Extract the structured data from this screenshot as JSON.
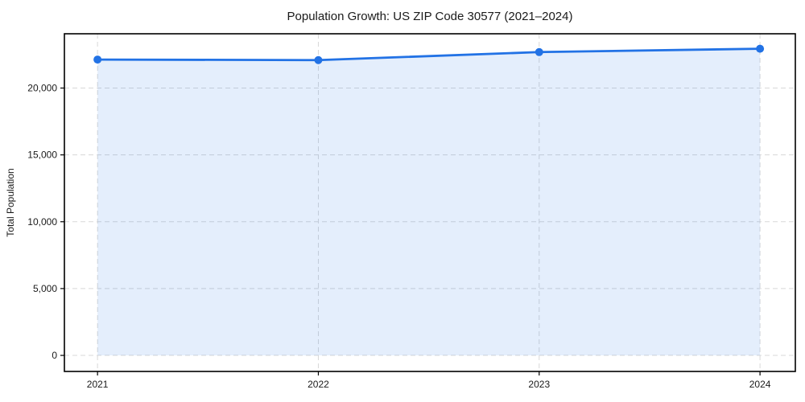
{
  "chart_data": {
    "type": "line",
    "title": "Population Growth: US ZIP Code 30577 (2021–2024)",
    "xlabel": "",
    "ylabel": "Total Population",
    "x": [
      2021,
      2022,
      2023,
      2024
    ],
    "values": [
      22130,
      22090,
      22690,
      22940
    ],
    "xtick_labels": [
      "2021",
      "2022",
      "2023",
      "2024"
    ],
    "ytick_values": [
      0,
      5000,
      10000,
      15000,
      20000
    ],
    "ytick_labels": [
      "0",
      "5,000",
      "10,000",
      "15,000",
      "20,000"
    ],
    "xlim": [
      2020.85,
      2024.16
    ],
    "ylim": [
      -1200,
      24060
    ],
    "grid": "dashed-both-axes",
    "legend": "none",
    "area_fill_to_zero": true,
    "colors": {
      "line": "#2272e5",
      "marker": "#2272e5",
      "fill": "#2272e5",
      "fill_opacity": "0.12",
      "grid": "#d8d8d8",
      "spine": "#000000",
      "text": "#1a1a1a",
      "background": "#ffffff"
    }
  }
}
